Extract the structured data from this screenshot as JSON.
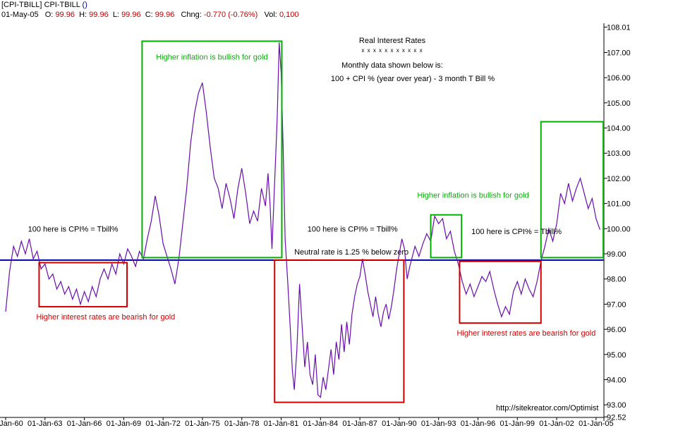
{
  "header": {
    "line1_symbol": "[CPI-TBILL] CPI-TBILL",
    "line1_paren": "()",
    "date": "01-May-05",
    "open_label": "O:",
    "open": "99.96",
    "high_label": "H:",
    "high": "99.96",
    "low_label": "L:",
    "low": "99.96",
    "close_label": "C:",
    "close": "99.96",
    "change_label": "Chng:",
    "change": "-0.770 (-0.76%)",
    "vol_label": "Vol:",
    "vol": "0,100"
  },
  "chart_data": {
    "type": "line",
    "title": "Real Interest Rates",
    "title_underline": "x x x x x x x x x x x",
    "subtitle": "Monthly data shown below is:",
    "formula": "100 + CPI % (year over year) - 3 month T Bill %",
    "credit": "http://sitekreator.com/Optimist",
    "x_domain": [
      1960.0,
      2005.6
    ],
    "ylim": [
      92.5,
      108.05
    ],
    "y_ticks": [
      "108.01",
      "107.00",
      "106.00",
      "105.00",
      "104.00",
      "103.00",
      "102.00",
      "101.00",
      "100.00",
      "99.00",
      "98.00",
      "97.00",
      "96.00",
      "95.00",
      "94.00",
      "93.00",
      "92.52"
    ],
    "x_ticks": [
      "01-Jan-60",
      "01-Jan-63",
      "01-Jan-66",
      "01-Jan-69",
      "01-Jan-72",
      "01-Jan-75",
      "01-Jan-78",
      "01-Jan-81",
      "01-Jan-84",
      "01-Jan-87",
      "01-Jan-90",
      "01-Jan-93",
      "01-Jan-96",
      "01-Jan-99",
      "01-Jan-02",
      "01-Jan-05"
    ],
    "neutral_rate": 98.75,
    "neutral_label": "Neutral rate is 1.25 % below zero",
    "series": [
      {
        "name": "CPI-TBILL",
        "color": "#6a0dad",
        "points": [
          [
            1960.0,
            96.7
          ],
          [
            1960.3,
            98.3
          ],
          [
            1960.6,
            99.3
          ],
          [
            1960.9,
            98.9
          ],
          [
            1961.2,
            99.5
          ],
          [
            1961.5,
            99.0
          ],
          [
            1961.8,
            99.6
          ],
          [
            1962.1,
            98.8
          ],
          [
            1962.4,
            99.1
          ],
          [
            1962.7,
            98.4
          ],
          [
            1963.0,
            98.6
          ],
          [
            1963.3,
            98.0
          ],
          [
            1963.6,
            98.2
          ],
          [
            1963.9,
            97.6
          ],
          [
            1964.2,
            97.9
          ],
          [
            1964.5,
            97.4
          ],
          [
            1964.8,
            97.7
          ],
          [
            1965.1,
            97.2
          ],
          [
            1965.4,
            97.6
          ],
          [
            1965.7,
            97.0
          ],
          [
            1966.0,
            97.5
          ],
          [
            1966.3,
            97.1
          ],
          [
            1966.6,
            97.7
          ],
          [
            1966.9,
            97.3
          ],
          [
            1967.2,
            98.0
          ],
          [
            1967.5,
            98.4
          ],
          [
            1967.8,
            98.0
          ],
          [
            1968.1,
            98.6
          ],
          [
            1968.4,
            98.2
          ],
          [
            1968.7,
            99.0
          ],
          [
            1969.0,
            98.6
          ],
          [
            1969.3,
            99.2
          ],
          [
            1969.6,
            98.9
          ],
          [
            1969.9,
            98.5
          ],
          [
            1970.2,
            99.1
          ],
          [
            1970.5,
            98.8
          ],
          [
            1970.8,
            99.6
          ],
          [
            1971.1,
            100.3
          ],
          [
            1971.4,
            101.3
          ],
          [
            1971.7,
            100.5
          ],
          [
            1972.0,
            99.4
          ],
          [
            1972.3,
            98.9
          ],
          [
            1972.6,
            98.4
          ],
          [
            1972.9,
            97.8
          ],
          [
            1973.2,
            98.8
          ],
          [
            1973.5,
            100.2
          ],
          [
            1973.8,
            101.6
          ],
          [
            1974.1,
            103.4
          ],
          [
            1974.4,
            104.6
          ],
          [
            1974.7,
            105.4
          ],
          [
            1975.0,
            105.8
          ],
          [
            1975.3,
            104.6
          ],
          [
            1975.6,
            103.2
          ],
          [
            1975.9,
            102.0
          ],
          [
            1976.2,
            101.6
          ],
          [
            1976.5,
            100.8
          ],
          [
            1976.8,
            101.8
          ],
          [
            1977.1,
            101.2
          ],
          [
            1977.4,
            100.4
          ],
          [
            1977.7,
            101.6
          ],
          [
            1978.0,
            102.4
          ],
          [
            1978.3,
            101.4
          ],
          [
            1978.6,
            100.2
          ],
          [
            1978.9,
            100.7
          ],
          [
            1979.2,
            100.3
          ],
          [
            1979.5,
            101.6
          ],
          [
            1979.8,
            100.9
          ],
          [
            1980.0,
            102.2
          ],
          [
            1980.15,
            101.0
          ],
          [
            1980.3,
            99.2
          ],
          [
            1980.5,
            101.8
          ],
          [
            1980.7,
            104.4
          ],
          [
            1980.85,
            107.4
          ],
          [
            1981.0,
            106.2
          ],
          [
            1981.15,
            103.3
          ],
          [
            1981.3,
            99.6
          ],
          [
            1981.5,
            97.9
          ],
          [
            1981.7,
            96.0
          ],
          [
            1981.85,
            94.4
          ],
          [
            1982.0,
            93.6
          ],
          [
            1982.2,
            95.2
          ],
          [
            1982.4,
            97.8
          ],
          [
            1982.6,
            96.1
          ],
          [
            1982.8,
            94.5
          ],
          [
            1983.0,
            95.5
          ],
          [
            1983.2,
            94.2
          ],
          [
            1983.4,
            93.8
          ],
          [
            1983.6,
            95.0
          ],
          [
            1983.8,
            93.4
          ],
          [
            1984.0,
            93.3
          ],
          [
            1984.2,
            94.1
          ],
          [
            1984.4,
            93.6
          ],
          [
            1984.6,
            94.4
          ],
          [
            1984.8,
            95.2
          ],
          [
            1985.0,
            94.2
          ],
          [
            1985.2,
            95.5
          ],
          [
            1985.4,
            94.8
          ],
          [
            1985.6,
            96.2
          ],
          [
            1985.8,
            95.1
          ],
          [
            1986.0,
            96.3
          ],
          [
            1986.2,
            95.4
          ],
          [
            1986.4,
            96.6
          ],
          [
            1986.6,
            97.3
          ],
          [
            1986.8,
            97.8
          ],
          [
            1987.0,
            98.1
          ],
          [
            1987.2,
            98.8
          ],
          [
            1987.4,
            98.2
          ],
          [
            1987.6,
            97.5
          ],
          [
            1987.8,
            97.0
          ],
          [
            1988.0,
            96.5
          ],
          [
            1988.2,
            97.3
          ],
          [
            1988.4,
            96.6
          ],
          [
            1988.6,
            96.1
          ],
          [
            1988.8,
            96.7
          ],
          [
            1989.0,
            97.0
          ],
          [
            1989.2,
            96.4
          ],
          [
            1989.4,
            96.9
          ],
          [
            1989.6,
            97.6
          ],
          [
            1989.8,
            98.4
          ],
          [
            1990.0,
            99.0
          ],
          [
            1990.2,
            99.6
          ],
          [
            1990.4,
            99.2
          ],
          [
            1990.6,
            98.0
          ],
          [
            1990.8,
            98.5
          ],
          [
            1991.0,
            98.9
          ],
          [
            1991.2,
            99.3
          ],
          [
            1991.5,
            98.9
          ],
          [
            1991.8,
            99.4
          ],
          [
            1992.1,
            99.8
          ],
          [
            1992.4,
            99.5
          ],
          [
            1992.7,
            100.5
          ],
          [
            1993.0,
            100.2
          ],
          [
            1993.3,
            100.4
          ],
          [
            1993.6,
            99.6
          ],
          [
            1993.9,
            99.9
          ],
          [
            1994.2,
            99.1
          ],
          [
            1994.5,
            98.6
          ],
          [
            1994.8,
            97.9
          ],
          [
            1995.1,
            97.4
          ],
          [
            1995.4,
            97.8
          ],
          [
            1995.7,
            97.3
          ],
          [
            1996.0,
            97.7
          ],
          [
            1996.3,
            98.1
          ],
          [
            1996.6,
            97.9
          ],
          [
            1996.9,
            98.3
          ],
          [
            1997.2,
            97.6
          ],
          [
            1997.5,
            97.0
          ],
          [
            1997.8,
            96.5
          ],
          [
            1998.1,
            96.9
          ],
          [
            1998.4,
            96.6
          ],
          [
            1998.7,
            97.5
          ],
          [
            1999.0,
            97.9
          ],
          [
            1999.3,
            97.4
          ],
          [
            1999.6,
            98.0
          ],
          [
            1999.9,
            97.6
          ],
          [
            2000.2,
            97.3
          ],
          [
            2000.5,
            97.9
          ],
          [
            2000.8,
            98.7
          ],
          [
            2001.1,
            99.3
          ],
          [
            2001.4,
            100.0
          ],
          [
            2001.7,
            99.5
          ],
          [
            2002.0,
            100.2
          ],
          [
            2002.3,
            101.4
          ],
          [
            2002.6,
            101.0
          ],
          [
            2002.9,
            101.8
          ],
          [
            2003.2,
            101.1
          ],
          [
            2003.5,
            101.6
          ],
          [
            2003.8,
            102.0
          ],
          [
            2004.1,
            101.4
          ],
          [
            2004.4,
            100.8
          ],
          [
            2004.7,
            101.2
          ],
          [
            2005.0,
            100.4
          ],
          [
            2005.3,
            99.96
          ]
        ]
      }
    ],
    "regions": [
      {
        "kind": "bearish",
        "x0": 1962.55,
        "x1": 1969.25,
        "y0": 98.65,
        "y1": 96.9,
        "label": "Higher interest rates are bearish for gold"
      },
      {
        "kind": "bullish",
        "x0": 1970.4,
        "x1": 1981.05,
        "y0": 107.45,
        "y1": 98.85,
        "label": "Higher inflation is bullish for gold"
      },
      {
        "kind": "bearish",
        "x0": 1980.5,
        "x1": 1990.35,
        "y0": 98.75,
        "y1": 93.1,
        "label": ""
      },
      {
        "kind": "bullish",
        "x0": 1992.4,
        "x1": 1994.75,
        "y0": 100.55,
        "y1": 98.85,
        "label": "Higher inflation is bullish for gold"
      },
      {
        "kind": "bearish",
        "x0": 1994.6,
        "x1": 2000.8,
        "y0": 98.7,
        "y1": 96.25,
        "label": "Higher interest rates are bearish for gold"
      },
      {
        "kind": "bullish",
        "x0": 2000.8,
        "x1": 2005.55,
        "y0": 104.25,
        "y1": 98.85,
        "label": ""
      }
    ],
    "annotations": [
      {
        "text": "100 here is CPI% = Tbill%",
        "x": 1961.7,
        "y": 100.0
      },
      {
        "text": "100 here is CPI% = Tbill%",
        "x": 1983.0,
        "y": 100.0
      },
      {
        "text": "100 here is CPI% = Tbill%",
        "x": 1995.5,
        "y": 99.9
      }
    ],
    "colors": {
      "bullish": "#00b000",
      "bearish": "#d00000",
      "neutral_line": "#0000a0",
      "axis": "#000000"
    }
  }
}
